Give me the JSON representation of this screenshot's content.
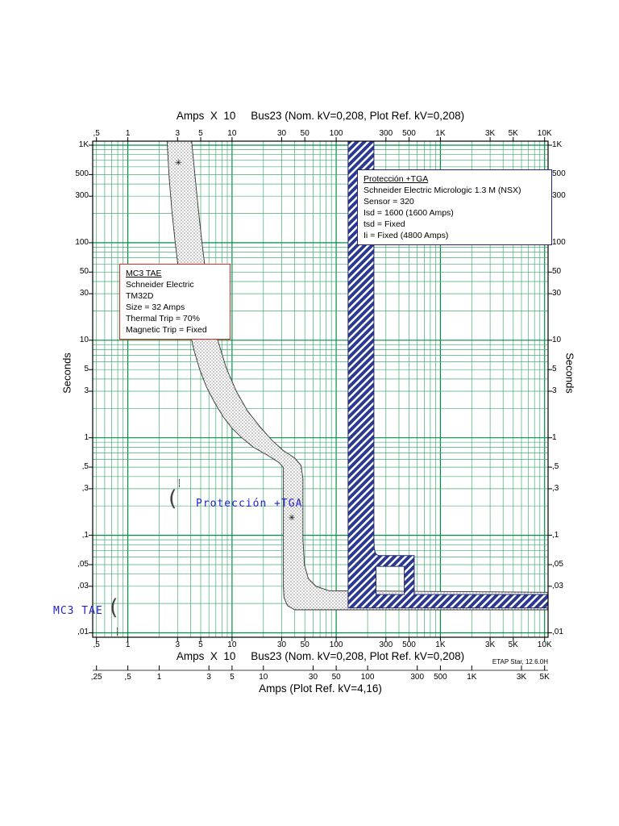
{
  "header": {
    "title": "Amps  X  10     Bus23 (Nom. kV=0,208, Plot Ref. kV=0,208)"
  },
  "footer": {
    "title": "Amps  X  10     Bus23 (Nom. kV=0,208, Plot Ref. kV=0,208)",
    "etap_version": "ETAP Star, 12.6.0H",
    "secondary_axis_title": "Amps (Plot Ref. kV=4,16)"
  },
  "y_axis_titles": {
    "left": "Seconds",
    "right": "Seconds"
  },
  "device_boxes": {
    "mc3": {
      "title": "MC3 TAE",
      "border_color": "#cc3328",
      "lines": [
        "Schneider Electric",
        "TM32D",
        "Size = 32 Amps",
        "Thermal Trip = 70%",
        "Magnetic Trip = Fixed"
      ]
    },
    "tga": {
      "title": "Protección +TGA",
      "border_color": "#23237a",
      "lines": [
        "Schneider Electric  Micrologic 1.3 M (NSX)",
        "Sensor = 320",
        "Isd = 1600 (1600 Amps)",
        "tsd = Fixed",
        "Ii = Fixed (4800 Amps)"
      ]
    }
  },
  "curve_tags": {
    "tga": "Protección +TGA",
    "mc3": "MC3 TAE",
    "color": "#2222cc",
    "pointer_glyph": "("
  },
  "chart_data": {
    "type": "line",
    "subtype": "time-current-coordination-bands",
    "title": "Amps X 10  Bus23 (Nom. kV=0,208, Plot Ref. kV=0,208)",
    "xlabel": "Amps X 10",
    "ylabel": "Seconds",
    "grid": true,
    "grid_color_minor": "#45ab74",
    "grid_color_major": "#008f44",
    "x_axis": {
      "scale": "log",
      "min": 0.46,
      "max": 10800,
      "ticks": [
        {
          "v": 0.5,
          "l": ",5"
        },
        {
          "v": 1,
          "l": "1"
        },
        {
          "v": 3,
          "l": "3"
        },
        {
          "v": 5,
          "l": "5"
        },
        {
          "v": 10,
          "l": "10"
        },
        {
          "v": 30,
          "l": "30"
        },
        {
          "v": 50,
          "l": "50"
        },
        {
          "v": 100,
          "l": "100"
        },
        {
          "v": 300,
          "l": "300"
        },
        {
          "v": 500,
          "l": "500"
        },
        {
          "v": 1000,
          "l": "1K"
        },
        {
          "v": 3000,
          "l": "3K"
        },
        {
          "v": 5000,
          "l": "5K"
        },
        {
          "v": 10000,
          "l": "10K"
        }
      ]
    },
    "y_axis": {
      "scale": "log",
      "min": 0.009,
      "max": 1100,
      "ticks": [
        {
          "v": 1000,
          "l": "1K"
        },
        {
          "v": 500,
          "l": "500"
        },
        {
          "v": 300,
          "l": "300"
        },
        {
          "v": 100,
          "l": "100"
        },
        {
          "v": 50,
          "l": "50"
        },
        {
          "v": 30,
          "l": "30"
        },
        {
          "v": 10,
          "l": "10"
        },
        {
          "v": 5,
          "l": "5"
        },
        {
          "v": 3,
          "l": "3"
        },
        {
          "v": 1,
          "l": "1"
        },
        {
          "v": 0.5,
          "l": ",5"
        },
        {
          "v": 0.3,
          "l": ",3"
        },
        {
          "v": 0.1,
          "l": ",1"
        },
        {
          "v": 0.05,
          "l": ",05"
        },
        {
          "v": 0.03,
          "l": ",03"
        },
        {
          "v": 0.01,
          "l": ",01"
        }
      ]
    },
    "secondary_x_axis": {
      "title": "Amps (Plot Ref. kV=4,16)",
      "value_factor": 2,
      "ticks": [
        {
          "v": 0.25,
          "l": ",25"
        },
        {
          "v": 0.5,
          "l": ",5"
        },
        {
          "v": 1,
          "l": "1"
        },
        {
          "v": 3,
          "l": "3"
        },
        {
          "v": 5,
          "l": "5"
        },
        {
          "v": 10,
          "l": "10"
        },
        {
          "v": 30,
          "l": "30"
        },
        {
          "v": 50,
          "l": "50"
        },
        {
          "v": 100,
          "l": "100"
        },
        {
          "v": 300,
          "l": "300"
        },
        {
          "v": 500,
          "l": "500"
        },
        {
          "v": 1000,
          "l": "1K"
        },
        {
          "v": 3000,
          "l": "3K"
        },
        {
          "v": 5000,
          "l": "5K"
        }
      ]
    },
    "series": [
      {
        "name": "MC3 TAE",
        "kind": "band",
        "fill": "stipple",
        "outline_color": "#333333",
        "points": [
          [
            2.38,
            1100
          ],
          [
            4.1,
            1100
          ],
          [
            4.4,
            500
          ],
          [
            4.75,
            220
          ],
          [
            5.15,
            100
          ],
          [
            5.65,
            45
          ],
          [
            6.3,
            21
          ],
          [
            7.3,
            10
          ],
          [
            8.8,
            5.2
          ],
          [
            11,
            3.0
          ],
          [
            14,
            1.9
          ],
          [
            18.5,
            1.3
          ],
          [
            24,
            0.95
          ],
          [
            31,
            0.74
          ],
          [
            40,
            0.62
          ],
          [
            46,
            0.52
          ],
          [
            48,
            0.38
          ],
          [
            48,
            0.09
          ],
          [
            49.5,
            0.05
          ],
          [
            54,
            0.036
          ],
          [
            64,
            0.03
          ],
          [
            85,
            0.027
          ],
          [
            10800,
            0.026
          ],
          [
            10800,
            0.0172
          ],
          [
            40,
            0.0172
          ],
          [
            34,
            0.019
          ],
          [
            31.5,
            0.023
          ],
          [
            31,
            0.032
          ],
          [
            31,
            0.5
          ],
          [
            28,
            0.56
          ],
          [
            22,
            0.66
          ],
          [
            16,
            0.8
          ],
          [
            12.4,
            1.0
          ],
          [
            10,
            1.25
          ],
          [
            8.2,
            1.65
          ],
          [
            6.8,
            2.3
          ],
          [
            5.7,
            3.3
          ],
          [
            4.9,
            5.0
          ],
          [
            4.3,
            8.0
          ],
          [
            3.85,
            13.5
          ],
          [
            3.45,
            24
          ],
          [
            3.1,
            48
          ],
          [
            2.85,
            100
          ],
          [
            2.65,
            210
          ],
          [
            2.5,
            450
          ],
          [
            2.38,
            1100
          ]
        ]
      },
      {
        "name": "Protección +TGA",
        "kind": "band",
        "fill": "hatch",
        "color": "#2b3990",
        "outline_color": "#20276e",
        "points": [
          [
            130,
            1100
          ],
          [
            230,
            1100
          ],
          [
            230,
            0.09
          ],
          [
            232,
            0.072
          ],
          [
            237,
            0.066
          ],
          [
            246,
            0.063
          ],
          [
            258,
            0.062
          ],
          [
            560,
            0.062
          ],
          [
            560,
            0.0247
          ],
          [
            10800,
            0.0247
          ],
          [
            10800,
            0.018
          ],
          [
            130,
            0.018
          ]
        ],
        "hole": [
          [
            241,
            0.048
          ],
          [
            450,
            0.048
          ],
          [
            450,
            0.0247
          ],
          [
            241,
            0.0247
          ]
        ]
      }
    ],
    "markers": [
      {
        "symbol": "✳",
        "x": 3.1,
        "t": 650
      },
      {
        "symbol": "✳",
        "x": 38,
        "t": 0.148
      }
    ]
  }
}
